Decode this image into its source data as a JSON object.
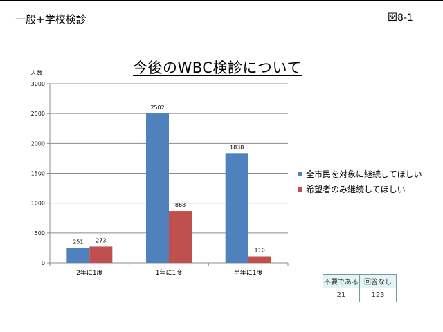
{
  "header": {
    "heading": "一般+学校検診",
    "figure_number": "図8-1"
  },
  "chart_data": {
    "type": "bar",
    "title": "今後のWBC検診について",
    "ylabel": "人数",
    "xlabel": "",
    "ylim": [
      0,
      3000
    ],
    "yticks": [
      0,
      500,
      1000,
      1500,
      2000,
      2500,
      3000
    ],
    "categories": [
      "2年に1度",
      "1年に1度",
      "半年に1度"
    ],
    "series": [
      {
        "name": "全市民を対象に継続してほしい",
        "values": [
          251,
          2502,
          1838
        ],
        "color": "#4f81bd"
      },
      {
        "name": "希望者のみ継続してほしい",
        "values": [
          273,
          868,
          110
        ],
        "color": "#c0504d"
      }
    ],
    "grid": true,
    "legend_position": "right"
  },
  "summary_table": {
    "headers": [
      "不要である",
      "回答なし"
    ],
    "values": [
      "21",
      "123"
    ]
  }
}
